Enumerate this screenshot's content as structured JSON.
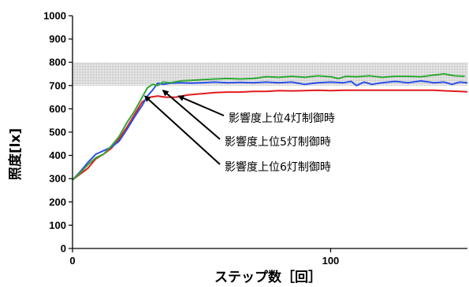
{
  "chart_data": {
    "type": "line",
    "xlabel": "ステップ数［回］",
    "ylabel": "照度[lx]",
    "xlim": [
      0,
      153
    ],
    "ylim": [
      0,
      1000
    ],
    "x_ticks": [
      "0",
      "100"
    ],
    "x_tick_values": [
      0,
      100
    ],
    "y_ticks": [
      "0",
      "100",
      "200",
      "300",
      "400",
      "500",
      "600",
      "700",
      "800",
      "900",
      "1000"
    ],
    "y_tick_values": [
      0,
      100,
      200,
      300,
      400,
      500,
      600,
      700,
      800,
      900,
      1000
    ],
    "grid": false,
    "shaded_band": {
      "y_from": 700,
      "y_to": 800,
      "fill": "dotted-gray"
    },
    "series": [
      {
        "color": "#e41a1c",
        "points": [
          [
            0,
            295
          ],
          [
            3,
            320
          ],
          [
            6,
            345
          ],
          [
            9,
            385
          ],
          [
            12,
            405
          ],
          [
            15,
            430
          ],
          [
            18,
            470
          ],
          [
            21,
            520
          ],
          [
            24,
            575
          ],
          [
            27,
            630
          ],
          [
            30,
            650
          ],
          [
            33,
            655
          ],
          [
            36,
            650
          ],
          [
            40,
            650
          ],
          [
            45,
            660
          ],
          [
            50,
            665
          ],
          [
            55,
            670
          ],
          [
            60,
            672
          ],
          [
            65,
            672
          ],
          [
            70,
            675
          ],
          [
            75,
            675
          ],
          [
            80,
            678
          ],
          [
            85,
            677
          ],
          [
            90,
            678
          ],
          [
            95,
            680
          ],
          [
            100,
            678
          ],
          [
            105,
            680
          ],
          [
            110,
            680
          ],
          [
            115,
            680
          ],
          [
            120,
            680
          ],
          [
            125,
            680
          ],
          [
            130,
            680
          ],
          [
            135,
            680
          ],
          [
            140,
            680
          ],
          [
            145,
            677
          ],
          [
            150,
            675
          ],
          [
            153,
            673
          ]
        ]
      },
      {
        "color": "#2b50e8",
        "points": [
          [
            0,
            295
          ],
          [
            3,
            330
          ],
          [
            6,
            370
          ],
          [
            9,
            405
          ],
          [
            12,
            420
          ],
          [
            15,
            435
          ],
          [
            18,
            460
          ],
          [
            21,
            510
          ],
          [
            24,
            565
          ],
          [
            27,
            615
          ],
          [
            29,
            655
          ],
          [
            31,
            680
          ],
          [
            33,
            710
          ],
          [
            35,
            705
          ],
          [
            38,
            710
          ],
          [
            42,
            712
          ],
          [
            46,
            710
          ],
          [
            50,
            712
          ],
          [
            55,
            715
          ],
          [
            60,
            712
          ],
          [
            65,
            714
          ],
          [
            70,
            712
          ],
          [
            75,
            715
          ],
          [
            80,
            712
          ],
          [
            85,
            715
          ],
          [
            90,
            705
          ],
          [
            95,
            712
          ],
          [
            100,
            715
          ],
          [
            105,
            712
          ],
          [
            108,
            718
          ],
          [
            110,
            700
          ],
          [
            113,
            715
          ],
          [
            116,
            705
          ],
          [
            120,
            712
          ],
          [
            125,
            718
          ],
          [
            130,
            712
          ],
          [
            135,
            720
          ],
          [
            140,
            712
          ],
          [
            144,
            715
          ],
          [
            147,
            705
          ],
          [
            150,
            715
          ],
          [
            153,
            712
          ]
        ]
      },
      {
        "color": "#31a836",
        "points": [
          [
            0,
            295
          ],
          [
            3,
            325
          ],
          [
            6,
            360
          ],
          [
            9,
            390
          ],
          [
            12,
            405
          ],
          [
            15,
            440
          ],
          [
            18,
            480
          ],
          [
            21,
            540
          ],
          [
            24,
            590
          ],
          [
            27,
            650
          ],
          [
            29,
            690
          ],
          [
            31,
            705
          ],
          [
            33,
            700
          ],
          [
            35,
            715
          ],
          [
            38,
            712
          ],
          [
            42,
            720
          ],
          [
            46,
            722
          ],
          [
            50,
            725
          ],
          [
            55,
            728
          ],
          [
            60,
            730
          ],
          [
            65,
            728
          ],
          [
            70,
            730
          ],
          [
            75,
            738
          ],
          [
            80,
            735
          ],
          [
            85,
            740
          ],
          [
            90,
            735
          ],
          [
            95,
            742
          ],
          [
            100,
            738
          ],
          [
            103,
            730
          ],
          [
            106,
            740
          ],
          [
            110,
            738
          ],
          [
            115,
            742
          ],
          [
            120,
            735
          ],
          [
            125,
            740
          ],
          [
            130,
            740
          ],
          [
            135,
            738
          ],
          [
            140,
            745
          ],
          [
            144,
            750
          ],
          [
            148,
            742
          ],
          [
            152,
            740
          ]
        ]
      }
    ],
    "annotations": [
      {
        "text": "影響度上位4灯制御時",
        "target": [
          41,
          655
        ]
      },
      {
        "text": "影響度上位5灯制御時",
        "target": [
          35,
          680
        ]
      },
      {
        "text": "影響度上位6灯制御時",
        "target": [
          28,
          655
        ]
      }
    ]
  }
}
